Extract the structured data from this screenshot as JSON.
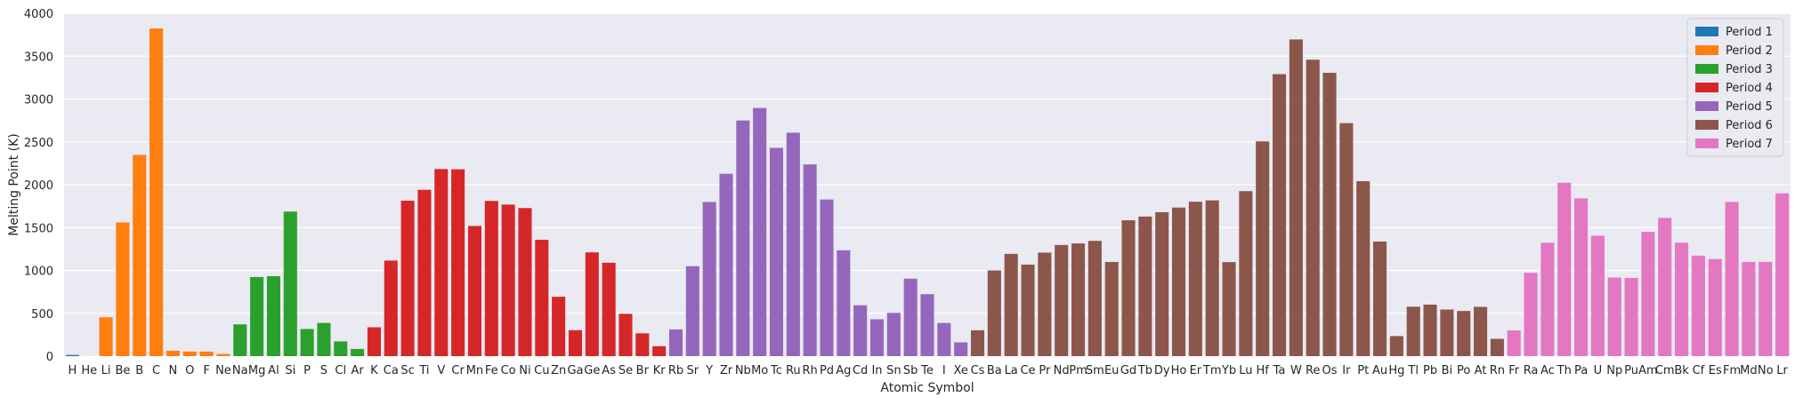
{
  "chart_data": {
    "type": "bar",
    "title": "",
    "xlabel": "Atomic Symbol",
    "ylabel": "Melting Point (K)",
    "ylim": [
      0,
      4000
    ],
    "yticks": [
      0,
      500,
      1000,
      1500,
      2000,
      2500,
      3000,
      3500,
      4000
    ],
    "grid": true,
    "legend_position": "top-right",
    "categories": [
      "H",
      "He",
      "Li",
      "Be",
      "B",
      "C",
      "N",
      "O",
      "F",
      "Ne",
      "Na",
      "Mg",
      "Al",
      "Si",
      "P",
      "S",
      "Cl",
      "Ar",
      "K",
      "Ca",
      "Sc",
      "Ti",
      "V",
      "Cr",
      "Mn",
      "Fe",
      "Co",
      "Ni",
      "Cu",
      "Zn",
      "Ga",
      "Ge",
      "As",
      "Se",
      "Br",
      "Kr",
      "Rb",
      "Sr",
      "Y",
      "Zr",
      "Nb",
      "Mo",
      "Tc",
      "Ru",
      "Rh",
      "Pd",
      "Ag",
      "Cd",
      "In",
      "Sn",
      "Sb",
      "Te",
      "I",
      "Xe",
      "Cs",
      "Ba",
      "La",
      "Ce",
      "Pr",
      "Nd",
      "Pm",
      "Sm",
      "Eu",
      "Gd",
      "Tb",
      "Dy",
      "Ho",
      "Er",
      "Tm",
      "Yb",
      "Lu",
      "Hf",
      "Ta",
      "W",
      "Re",
      "Os",
      "Ir",
      "Pt",
      "Au",
      "Hg",
      "Tl",
      "Pb",
      "Bi",
      "Po",
      "At",
      "Rn",
      "Fr",
      "Ra",
      "Ac",
      "Th",
      "Pa",
      "U",
      "Np",
      "Pu",
      "Am",
      "Cm",
      "Bk",
      "Cf",
      "Es",
      "Fm",
      "Md",
      "No",
      "Lr"
    ],
    "values": [
      14,
      1,
      454,
      1560,
      2348,
      3823,
      63,
      54,
      53,
      25,
      371,
      923,
      933,
      1687,
      317,
      388,
      172,
      84,
      337,
      1115,
      1814,
      1941,
      2183,
      2180,
      1519,
      1811,
      1768,
      1728,
      1358,
      693,
      303,
      1211,
      1090,
      494,
      266,
      116,
      312,
      1050,
      1799,
      2128,
      2750,
      2896,
      2430,
      2607,
      2237,
      1828,
      1235,
      594,
      430,
      505,
      904,
      723,
      387,
      161,
      302,
      1000,
      1193,
      1068,
      1208,
      1297,
      1315,
      1345,
      1099,
      1585,
      1629,
      1680,
      1734,
      1802,
      1818,
      1097,
      1925,
      2506,
      3290,
      3695,
      3459,
      3306,
      2719,
      2041,
      1337,
      234,
      577,
      601,
      544,
      527,
      575,
      202,
      300,
      973,
      1323,
      2023,
      1841,
      1405,
      917,
      913,
      1449,
      1613,
      1323,
      1173,
      1133,
      1800,
      1100,
      1100,
      1900
    ],
    "period_of_category": [
      1,
      1,
      2,
      2,
      2,
      2,
      2,
      2,
      2,
      2,
      3,
      3,
      3,
      3,
      3,
      3,
      3,
      3,
      4,
      4,
      4,
      4,
      4,
      4,
      4,
      4,
      4,
      4,
      4,
      4,
      4,
      4,
      4,
      4,
      4,
      4,
      5,
      5,
      5,
      5,
      5,
      5,
      5,
      5,
      5,
      5,
      5,
      5,
      5,
      5,
      5,
      5,
      5,
      5,
      6,
      6,
      6,
      6,
      6,
      6,
      6,
      6,
      6,
      6,
      6,
      6,
      6,
      6,
      6,
      6,
      6,
      6,
      6,
      6,
      6,
      6,
      6,
      6,
      6,
      6,
      6,
      6,
      6,
      6,
      6,
      6,
      7,
      7,
      7,
      7,
      7,
      7,
      7,
      7,
      7,
      7,
      7,
      7,
      7,
      7,
      7,
      7,
      7
    ],
    "series": [
      {
        "name": "Period 1",
        "color": "#1f77b4"
      },
      {
        "name": "Period 2",
        "color": "#ff7f0e"
      },
      {
        "name": "Period 3",
        "color": "#2ca02c"
      },
      {
        "name": "Period 4",
        "color": "#d62728"
      },
      {
        "name": "Period 5",
        "color": "#9467bd"
      },
      {
        "name": "Period 6",
        "color": "#8c564b"
      },
      {
        "name": "Period 7",
        "color": "#e377c2"
      }
    ]
  }
}
